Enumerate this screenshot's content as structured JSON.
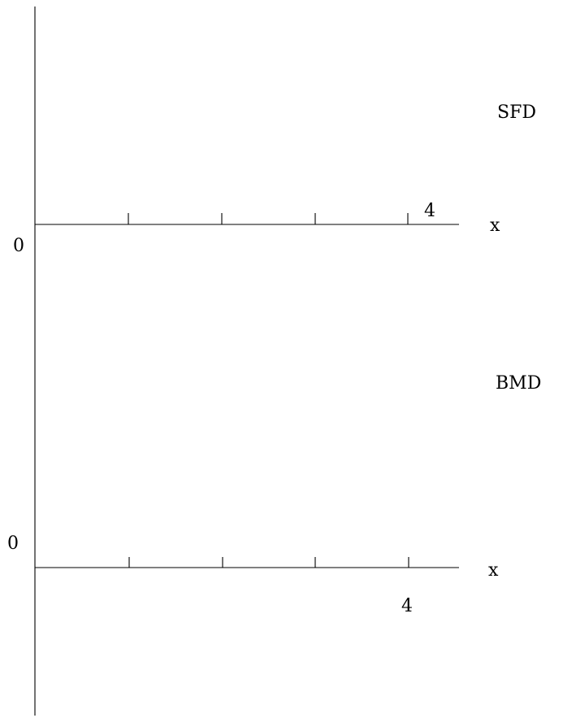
{
  "sfd": {
    "title": "SFD",
    "origin_label": "0",
    "end_label": "4",
    "axis_label": "x",
    "tick_count": 4
  },
  "bmd": {
    "title": "BMD",
    "origin_label": "0",
    "end_label": "4",
    "axis_label": "x",
    "tick_count": 4
  },
  "colors": {
    "line": "#000000",
    "background": "#ffffff"
  }
}
